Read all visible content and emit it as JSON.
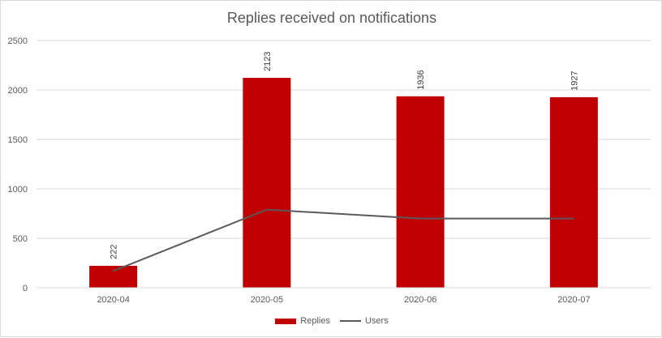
{
  "chart_data": {
    "type": "bar",
    "title": "Replies received on notifications",
    "categories": [
      "2020-04",
      "2020-05",
      "2020-06",
      "2020-07"
    ],
    "series": [
      {
        "name": "Replies",
        "kind": "bar",
        "color": "#c00000",
        "values": [
          222,
          2123,
          1936,
          1927
        ],
        "data_labels": [
          "222",
          "2123",
          "1936",
          "1927"
        ]
      },
      {
        "name": "Users",
        "kind": "line",
        "color": "#595959",
        "values": [
          170,
          790,
          700,
          700
        ]
      }
    ],
    "ylim": [
      0,
      2500
    ],
    "yticks": [
      "0",
      "500",
      "1000",
      "1500",
      "2000",
      "2500"
    ],
    "grid": true,
    "legend_position": "bottom"
  }
}
